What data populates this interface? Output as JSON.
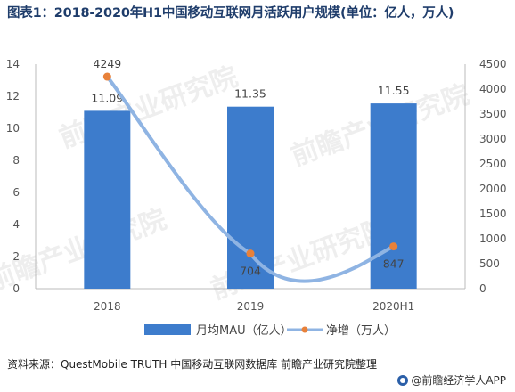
{
  "title": "图表1：2018-2020年H1中国移动互联网月活跃用户规模(单位：亿人，万人)",
  "source": "资料来源：QuestMobile TRUTH 中国移动互联网数据库 前瞻产业研究院整理",
  "brand": "@前瞻经济学人APP",
  "watermark": "前瞻产业研究院",
  "chart_data": {
    "type": "bar",
    "categories": [
      "2018",
      "2019",
      "2020H1"
    ],
    "series": [
      {
        "name": "月均MAU（亿人）",
        "type": "bar",
        "axis": "left",
        "values": [
          11.09,
          11.35,
          11.55
        ],
        "labels": [
          "11.09",
          "11.35",
          "11.55"
        ],
        "color": "#3d7ccc"
      },
      {
        "name": "净增（万人）",
        "type": "line",
        "axis": "right",
        "smooth": true,
        "values": [
          4249,
          704,
          847
        ],
        "labels": [
          "4249",
          "704",
          "847"
        ],
        "color": "#8fb4e3",
        "marker_color": "#e8813a"
      }
    ],
    "y_left": {
      "lim": [
        0,
        14
      ],
      "ticks": [
        "0",
        "2",
        "4",
        "6",
        "8",
        "10",
        "12",
        "14"
      ]
    },
    "y_right": {
      "lim": [
        0,
        4500
      ],
      "ticks": [
        "0",
        "500",
        "1000",
        "1500",
        "2000",
        "2500",
        "3000",
        "3500",
        "4000",
        "4500"
      ]
    },
    "grid": false,
    "legend_position": "bottom"
  }
}
